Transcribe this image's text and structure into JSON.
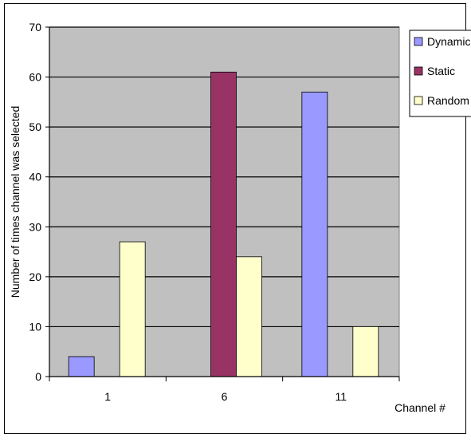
{
  "chart_data": {
    "type": "bar",
    "title": "",
    "xlabel": "Channel #",
    "ylabel": "Number of times channel was selected",
    "categories": [
      "1",
      "6",
      "11"
    ],
    "ylim": [
      0,
      70
    ],
    "yticks": [
      0,
      10,
      20,
      30,
      40,
      50,
      60,
      70
    ],
    "grid": true,
    "legend_position": "right",
    "colors": {
      "plot_background": "#c0c0c0",
      "grid": "#000000"
    },
    "series": [
      {
        "name": "Dynamic",
        "color": "#9999ff",
        "values": [
          4,
          0,
          57
        ]
      },
      {
        "name": "Static",
        "color": "#993366",
        "values": [
          0,
          61,
          0
        ]
      },
      {
        "name": "Random",
        "color": "#ffffcc",
        "values": [
          27,
          24,
          10
        ]
      }
    ]
  }
}
